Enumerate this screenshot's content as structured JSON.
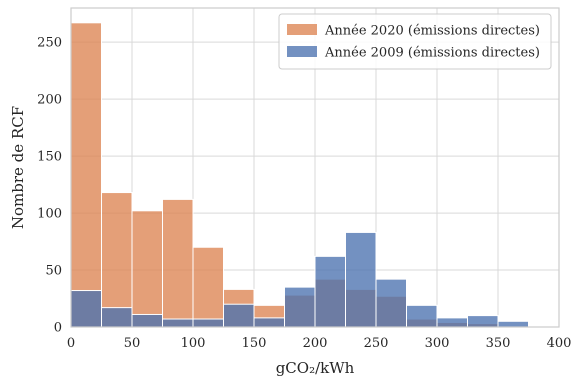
{
  "chart_data": {
    "type": "bar",
    "subtype": "histogram-overlay",
    "bin_edges": [
      0,
      25,
      50,
      75,
      100,
      125,
      150,
      175,
      200,
      225,
      250,
      275,
      300,
      325,
      350,
      375
    ],
    "series": [
      {
        "name": "Année 2020 (émissions directes)",
        "color": "#dd8452",
        "values": [
          267,
          118,
          102,
          112,
          70,
          33,
          19,
          28,
          42,
          33,
          27,
          7,
          4,
          3,
          0
        ]
      },
      {
        "name": "Année 2009 (émissions directes)",
        "color": "#4c72b0",
        "values": [
          32,
          17,
          11,
          7,
          7,
          20,
          8,
          35,
          62,
          83,
          42,
          19,
          8,
          10,
          5
        ]
      }
    ],
    "xlim": [
      0,
      400
    ],
    "ylim": [
      0,
      280
    ],
    "xticks": [
      0,
      50,
      100,
      150,
      200,
      250,
      300,
      350,
      400
    ],
    "yticks": [
      0,
      50,
      100,
      150,
      200,
      250
    ],
    "xlabel": "gCO₂/kWh",
    "ylabel": "Nombre de RCF",
    "grid": true,
    "legend_position": "top-right"
  }
}
